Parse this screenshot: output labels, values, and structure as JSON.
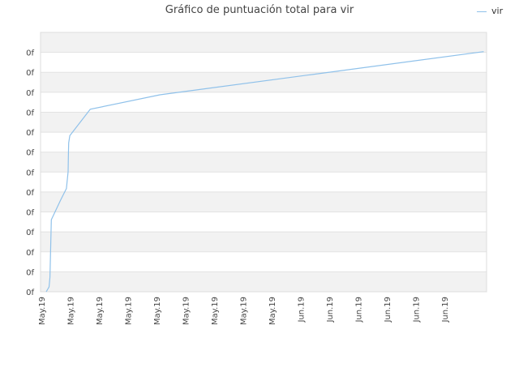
{
  "chart_data": {
    "type": "line",
    "title": "Gráfico de puntuación total para vir",
    "legend": {
      "position": "top-right"
    },
    "series": [
      {
        "name": "vir",
        "color": "#8fc1ea",
        "points": [
          [
            0.0,
            0.0
          ],
          [
            0.1,
            0.02
          ],
          [
            0.13,
            0.06
          ],
          [
            0.18,
            0.3
          ],
          [
            0.5,
            0.38
          ],
          [
            0.71,
            0.43
          ],
          [
            0.77,
            0.5
          ],
          [
            0.78,
            0.56
          ],
          [
            0.79,
            0.62
          ],
          [
            0.81,
            0.635
          ],
          [
            0.83,
            0.65
          ],
          [
            1.55,
            0.76
          ],
          [
            4.0,
            0.82
          ],
          [
            15.4,
            1.0
          ]
        ]
      }
    ],
    "x_tick_labels": [
      "May.19",
      "May.19",
      "May.19",
      "May.19",
      "May.19",
      "May.19",
      "May.19",
      "May.19",
      "May.19",
      "Jun.19",
      "Jun.19",
      "Jun.19",
      "Jun.19",
      "Jun.19",
      "Jun.19"
    ],
    "y_tick_labels": [
      "0f",
      "0f",
      "0f",
      "0f",
      "0f",
      "0f",
      "0f",
      "0f",
      "0f",
      "0f",
      "0f",
      "0f",
      "0f"
    ],
    "xlim": [
      -0.2,
      15.5
    ],
    "ylim": [
      0,
      1.08
    ],
    "grid": true
  }
}
